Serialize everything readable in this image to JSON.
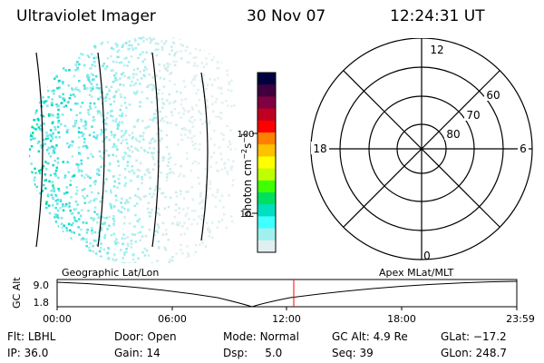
{
  "header": {
    "instrument": "Ultraviolet Imager",
    "date": "30 Nov 07",
    "time": "12:24:31 UT"
  },
  "colorbar": {
    "label_base": "photon cm",
    "label_exp1": "−2",
    "label_mid": "s",
    "label_exp2": "−1",
    "ticks": [
      "100",
      "10"
    ],
    "colors": [
      "#000040",
      "#400040",
      "#800040",
      "#c00020",
      "#ff0000",
      "#ff8000",
      "#ffc000",
      "#ffff00",
      "#c0ff00",
      "#40ff00",
      "#00e060",
      "#00e0c0",
      "#40ffff",
      "#a0f0f0",
      "#e0f0f0"
    ]
  },
  "polar_plot": {
    "mlt_labels": {
      "top": "12",
      "left": "18",
      "right": "6",
      "bottom": "0"
    },
    "lat_labels": [
      "60",
      "70",
      "80"
    ]
  },
  "timeline": {
    "left_title": "Geographic Lat/Lon",
    "right_title": "Apex MLat/MLT",
    "y_axis_label": "GC Alt",
    "y_ticks": [
      "9.0",
      "1.8"
    ],
    "x_ticks": [
      "00:00",
      "06:00",
      "12:00",
      "18:00",
      "23:59"
    ],
    "current_time_color": "#ff0000"
  },
  "info": {
    "row1": [
      {
        "label": "Flt:",
        "value": "LBHL"
      },
      {
        "label": "Door:",
        "value": "Open"
      },
      {
        "label": "Mode:",
        "value": "Normal"
      },
      {
        "label": "GC Alt:",
        "value": "4.9 Re"
      },
      {
        "label": "GLat:",
        "value": "−17.2"
      }
    ],
    "row2": [
      {
        "label": "IP:",
        "value": "36.0"
      },
      {
        "label": "Gain:",
        "value": "14"
      },
      {
        "label": "Dsp:",
        "value": "5.0"
      },
      {
        "label": "Seq:",
        "value": "39"
      },
      {
        "label": "GLon:",
        "value": "248.7"
      }
    ]
  }
}
